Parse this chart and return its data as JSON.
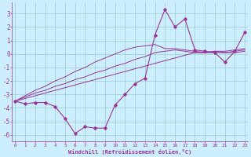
{
  "xlabel": "Windchill (Refroidissement éolien,°C)",
  "background_color": "#cceeff",
  "grid_color": "#99cccc",
  "line_color": "#993399",
  "x_hours": [
    0,
    1,
    2,
    3,
    4,
    5,
    6,
    7,
    8,
    9,
    10,
    11,
    12,
    13,
    14,
    15,
    16,
    17,
    18,
    19,
    20,
    21,
    22,
    23
  ],
  "windchill": [
    -3.5,
    -3.7,
    -3.6,
    -3.6,
    -3.9,
    -4.8,
    -5.9,
    -5.4,
    -5.5,
    -5.5,
    -3.8,
    -3.0,
    -2.2,
    -1.8,
    1.4,
    3.3,
    2.0,
    2.6,
    0.3,
    0.2,
    0.1,
    -0.6,
    0.2,
    1.6
  ],
  "line1": [
    -3.5,
    -3.3,
    -3.1,
    -2.9,
    -2.7,
    -2.5,
    -2.3,
    -2.1,
    -1.9,
    -1.7,
    -1.5,
    -1.3,
    -1.1,
    -0.9,
    -0.7,
    -0.5,
    -0.3,
    -0.1,
    0.1,
    0.1,
    0.1,
    0.1,
    0.1,
    0.2
  ],
  "line2": [
    -3.5,
    -3.2,
    -2.9,
    -2.7,
    -2.4,
    -2.2,
    -1.9,
    -1.7,
    -1.4,
    -1.2,
    -0.9,
    -0.7,
    -0.4,
    -0.2,
    0.1,
    0.2,
    0.3,
    0.2,
    0.1,
    0.1,
    0.2,
    0.1,
    0.2,
    0.3
  ],
  "line3": [
    -3.5,
    -3.1,
    -2.7,
    -2.4,
    -2.0,
    -1.7,
    -1.3,
    -1.0,
    -0.6,
    -0.3,
    0.0,
    0.3,
    0.5,
    0.6,
    0.7,
    0.4,
    0.4,
    0.3,
    0.2,
    0.1,
    0.2,
    0.2,
    0.3,
    0.4
  ],
  "ylim": [
    -6.5,
    3.8
  ],
  "yticks": [
    -6,
    -5,
    -4,
    -3,
    -2,
    -1,
    0,
    1,
    2,
    3
  ],
  "xticks": [
    0,
    1,
    2,
    3,
    4,
    5,
    6,
    7,
    8,
    9,
    10,
    11,
    12,
    13,
    14,
    15,
    16,
    17,
    18,
    19,
    20,
    21,
    22,
    23
  ]
}
